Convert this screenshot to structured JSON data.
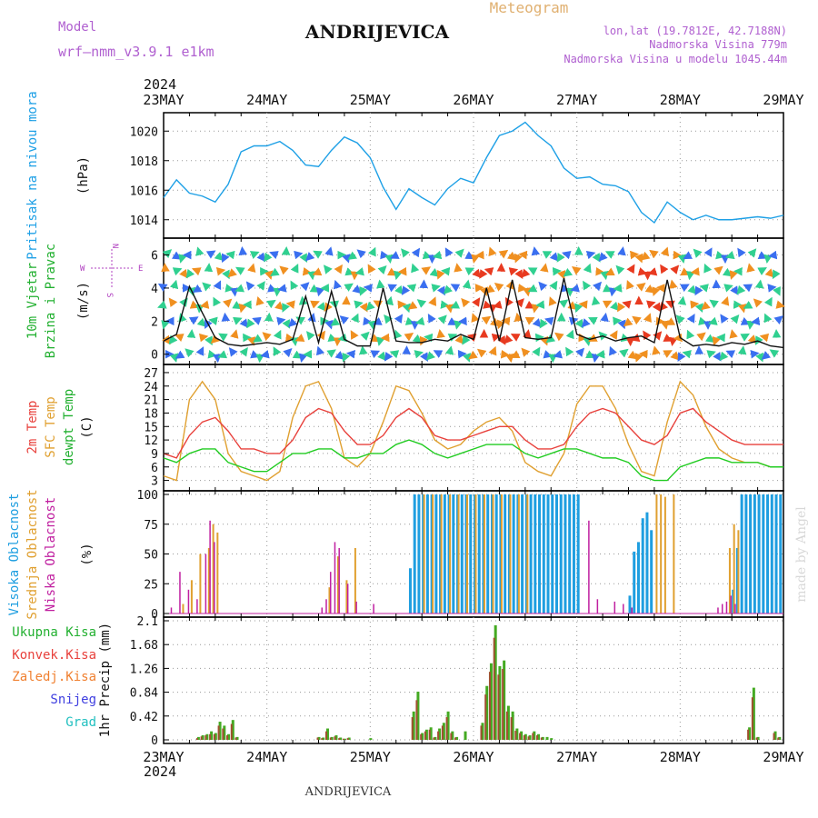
{
  "header": {
    "model_label": "Model",
    "model_name": "wrf–nmm_v3.9.1  e1km",
    "location": "ANDRIJEVICA",
    "product": "Meteogram",
    "coords": "lon,lat (19.7812E, 42.7188N)",
    "elevation": "Nadmorska Visina 779m",
    "model_elevation": "Nadmorska Visina u modelu 1045.44m",
    "year_top": "2024",
    "year_bottom": "2024",
    "footer_location": "ANDRIJEVICA",
    "watermark": "made by Angel"
  },
  "colors": {
    "pressure": "#1ea0e6",
    "temp2m": "#e8413c",
    "sfc": "#e0a030",
    "dewpt": "#22cc22",
    "high_cloud": "#1e9ee0",
    "mid_cloud": "#e0a030",
    "low_cloud": "#c020a0",
    "total_precip": "#44aa22",
    "conv_precip": "#a05030"
  },
  "chart_data": [
    {
      "type": "line",
      "panel": "pressure",
      "ylabel_main": "Pritisak na nivou mora",
      "ylabel_unit": "(hPa)",
      "x_ticks": [
        "23MAY",
        "24MAY",
        "25MAY",
        "26MAY",
        "27MAY",
        "28MAY",
        "29MAY"
      ],
      "ylim": [
        1013,
        1021
      ],
      "y_ticks": [
        "1014",
        "1016",
        "1018",
        "1020"
      ],
      "series": [
        {
          "x_hours": [
            0,
            3,
            6,
            9,
            12,
            15,
            18,
            21,
            24,
            27,
            30,
            33,
            36,
            39,
            42,
            45,
            48,
            51,
            54,
            57,
            60,
            63,
            66,
            69,
            72,
            75,
            78,
            81,
            84,
            87,
            90,
            93,
            96,
            99,
            102,
            105,
            108,
            111,
            114,
            117,
            120,
            123,
            126,
            129,
            132,
            135,
            138,
            141,
            144
          ],
          "values": [
            1015.5,
            1016.7,
            1015.8,
            1015.6,
            1015.2,
            1016.4,
            1018.6,
            1019.0,
            1019.0,
            1019.3,
            1018.7,
            1017.7,
            1017.6,
            1018.7,
            1019.6,
            1019.2,
            1018.2,
            1016.2,
            1014.7,
            1016.1,
            1015.5,
            1015.0,
            1016.1,
            1016.8,
            1016.5,
            1018.2,
            1019.7,
            1020.0,
            1020.6,
            1019.7,
            1019.0,
            1017.5,
            1016.8,
            1016.9,
            1016.4,
            1016.3,
            1015.9,
            1014.5,
            1013.8,
            1015.2,
            1014.5,
            1014.0,
            1014.3,
            1014.0,
            1014.0,
            1014.1,
            1014.2,
            1014.1,
            1014.3
          ]
        }
      ]
    },
    {
      "type": "line",
      "panel": "wind",
      "ylabel_main": "10m Vjetar",
      "ylabel_sub": "Brzina i Pravac",
      "ylabel_unit": "(m/s)",
      "compass": {
        "north": "N",
        "south": "S",
        "west": "W",
        "east": "E"
      },
      "ylim": [
        -0.4,
        6.8
      ],
      "y_ticks": [
        "0",
        "2",
        "4",
        "6"
      ],
      "series": [
        {
          "name": "wind speed",
          "x_hours": [
            0,
            3,
            6,
            9,
            12,
            15,
            18,
            21,
            24,
            27,
            30,
            33,
            36,
            39,
            42,
            45,
            48,
            51,
            54,
            57,
            60,
            63,
            66,
            69,
            72,
            75,
            78,
            81,
            84,
            87,
            90,
            93,
            96,
            99,
            102,
            105,
            108,
            111,
            114,
            117,
            120,
            123,
            126,
            129,
            132,
            135,
            138,
            141,
            144
          ],
          "values": [
            0.8,
            1.2,
            4.1,
            2.5,
            1.0,
            0.6,
            0.5,
            0.6,
            0.7,
            0.6,
            0.9,
            3.5,
            0.7,
            3.8,
            0.9,
            0.5,
            0.5,
            4.0,
            0.8,
            0.7,
            0.7,
            0.9,
            0.8,
            1.2,
            0.9,
            4.0,
            0.8,
            4.5,
            1.0,
            0.9,
            1.0,
            4.6,
            1.2,
            0.9,
            1.1,
            0.8,
            1.0,
            1.1,
            0.7,
            4.5,
            1.0,
            0.5,
            0.6,
            0.5,
            0.7,
            0.6,
            0.8,
            0.5,
            0.4
          ]
        }
      ]
    },
    {
      "type": "line",
      "panel": "temperature",
      "ylabel_t2m": "2m Temp",
      "ylabel_sfc": "SFC Temp",
      "ylabel_dew": "dewpt Temp",
      "ylabel_unit": "(C)",
      "ylim": [
        1.5,
        28
      ],
      "y_ticks": [
        "3",
        "6",
        "9",
        "12",
        "15",
        "18",
        "21",
        "24",
        "27"
      ],
      "series": [
        {
          "name": "2m Temp",
          "x_hours": [
            0,
            3,
            6,
            9,
            12,
            15,
            18,
            21,
            24,
            27,
            30,
            33,
            36,
            39,
            42,
            45,
            48,
            51,
            54,
            57,
            60,
            63,
            66,
            69,
            72,
            75,
            78,
            81,
            84,
            87,
            90,
            93,
            96,
            99,
            102,
            105,
            108,
            111,
            114,
            117,
            120,
            123,
            126,
            129,
            132,
            135,
            138,
            141,
            144
          ],
          "values": [
            9,
            8,
            13,
            16,
            17,
            14,
            10,
            10,
            9,
            9,
            12,
            17,
            19,
            18,
            14,
            11,
            11,
            13,
            17,
            19,
            17,
            13,
            12,
            12,
            13,
            14,
            15,
            15,
            12,
            10,
            10,
            11,
            15,
            18,
            19,
            18,
            15,
            12,
            11,
            13,
            18,
            19,
            16,
            14,
            12,
            11,
            11,
            11,
            11
          ]
        },
        {
          "name": "SFC Temp",
          "x_hours": [
            0,
            3,
            6,
            9,
            12,
            15,
            18,
            21,
            24,
            27,
            30,
            33,
            36,
            39,
            42,
            45,
            48,
            51,
            54,
            57,
            60,
            63,
            66,
            69,
            72,
            75,
            78,
            81,
            84,
            87,
            90,
            93,
            96,
            99,
            102,
            105,
            108,
            111,
            114,
            117,
            120,
            123,
            126,
            129,
            132,
            135,
            138,
            141,
            144
          ],
          "values": [
            4,
            3,
            21,
            25,
            21,
            9,
            5,
            4,
            3,
            5,
            17,
            24,
            25,
            19,
            8,
            6,
            9,
            16,
            24,
            23,
            18,
            12,
            10,
            11,
            14,
            16,
            17,
            14,
            7,
            5,
            4,
            9,
            20,
            24,
            24,
            19,
            11,
            5,
            4,
            16,
            25,
            22,
            15,
            10,
            8,
            7,
            7,
            6,
            6
          ]
        },
        {
          "name": "dewpt Temp",
          "x_hours": [
            0,
            3,
            6,
            9,
            12,
            15,
            18,
            21,
            24,
            27,
            30,
            33,
            36,
            39,
            42,
            45,
            48,
            51,
            54,
            57,
            60,
            63,
            66,
            69,
            72,
            75,
            78,
            81,
            84,
            87,
            90,
            93,
            96,
            99,
            102,
            105,
            108,
            111,
            114,
            117,
            120,
            123,
            126,
            129,
            132,
            135,
            138,
            141,
            144
          ],
          "values": [
            8,
            7,
            9,
            10,
            10,
            7,
            6,
            5,
            5,
            7,
            9,
            9,
            10,
            10,
            8,
            8,
            9,
            9,
            11,
            12,
            11,
            9,
            8,
            9,
            10,
            11,
            11,
            11,
            9,
            8,
            9,
            10,
            10,
            9,
            8,
            8,
            7,
            4,
            3,
            3,
            6,
            7,
            8,
            8,
            7,
            7,
            7,
            6,
            6
          ]
        }
      ]
    },
    {
      "type": "bar",
      "panel": "cloud",
      "ylabel_high": "Visoka Oblacnost",
      "ylabel_mid": "Srednja Oblacnost",
      "ylabel_low": "Niska Oblacnost",
      "ylabel_unit": "(%)",
      "ylim": [
        0,
        100
      ],
      "y_ticks": [
        "0",
        "25",
        "50",
        "75",
        "100"
      ],
      "series": [
        {
          "name": "Visoka Oblacnost",
          "x_hours": [
            57,
            58,
            59,
            60,
            61,
            62,
            63,
            64,
            65,
            66,
            67,
            68,
            69,
            70,
            71,
            72,
            73,
            74,
            75,
            76,
            77,
            78,
            79,
            80,
            81,
            82,
            83,
            84,
            85,
            86,
            87,
            88,
            89,
            90,
            91,
            92,
            93,
            94,
            95,
            96,
            108,
            109,
            110,
            111,
            112,
            113,
            132,
            133,
            134,
            135,
            136,
            137,
            138,
            139,
            140,
            141,
            142,
            143
          ],
          "values": [
            38,
            100,
            100,
            100,
            100,
            100,
            100,
            100,
            100,
            100,
            100,
            100,
            100,
            100,
            100,
            100,
            100,
            100,
            100,
            100,
            100,
            100,
            100,
            100,
            100,
            100,
            100,
            100,
            100,
            100,
            100,
            100,
            100,
            100,
            100,
            100,
            100,
            100,
            100,
            100,
            15,
            52,
            60,
            80,
            85,
            70,
            20,
            55,
            100,
            100,
            100,
            100,
            100,
            100,
            100,
            100,
            100,
            100
          ]
        },
        {
          "name": "Srednja Oblacnost",
          "x_hours": [
            4,
            6,
            8,
            10,
            11,
            12,
            38,
            40,
            42,
            44,
            60,
            62,
            64,
            66,
            68,
            70,
            72,
            74,
            76,
            78,
            80,
            82,
            84,
            114,
            115,
            116,
            118,
            131,
            132,
            133
          ],
          "values": [
            8,
            28,
            50,
            55,
            75,
            68,
            22,
            48,
            28,
            55,
            100,
            100,
            100,
            100,
            100,
            100,
            100,
            100,
            100,
            100,
            100,
            100,
            100,
            100,
            100,
            98,
            100,
            55,
            75,
            70
          ]
        },
        {
          "name": "Niska Oblacnost",
          "x_hours": [
            1,
            3,
            5,
            7,
            9,
            10,
            11,
            36,
            37,
            38,
            39,
            40,
            42,
            44,
            48,
            98,
            100,
            104,
            106,
            108,
            128,
            129,
            130,
            131,
            132
          ],
          "values": [
            5,
            35,
            20,
            12,
            50,
            78,
            60,
            5,
            12,
            35,
            60,
            55,
            25,
            10,
            8,
            78,
            12,
            10,
            8,
            5,
            5,
            8,
            10,
            15,
            8
          ]
        }
      ]
    },
    {
      "type": "bar",
      "panel": "precip",
      "ylabel_unit": "1hr Precip (mm)",
      "legend": [
        "Ukupna Kisa",
        "Konvek.Kisa",
        "Zaledj.Kisa",
        "Snijeg",
        "Grad"
      ],
      "ylim": [
        0,
        2.1
      ],
      "y_ticks": [
        "0",
        "0.42",
        "0.84",
        "1.26",
        "1.68",
        "2.1"
      ],
      "series": [
        {
          "name": "Ukupna Kisa",
          "x_hours": [
            8,
            9,
            10,
            11,
            12,
            13,
            14,
            15,
            16,
            17,
            36,
            37,
            38,
            39,
            40,
            41,
            42,
            43,
            48,
            58,
            59,
            60,
            61,
            62,
            63,
            64,
            65,
            66,
            67,
            68,
            70,
            74,
            75,
            76,
            77,
            78,
            79,
            80,
            81,
            82,
            83,
            84,
            85,
            86,
            87,
            88,
            89,
            90,
            136,
            137,
            138,
            142,
            143
          ],
          "values": [
            0.05,
            0.08,
            0.1,
            0.15,
            0.12,
            0.32,
            0.25,
            0.1,
            0.35,
            0.05,
            0.05,
            0.04,
            0.2,
            0.05,
            0.08,
            0.04,
            0.02,
            0.04,
            0.03,
            0.5,
            0.85,
            0.12,
            0.18,
            0.22,
            0.05,
            0.2,
            0.3,
            0.5,
            0.15,
            0.05,
            0.15,
            0.3,
            0.95,
            1.35,
            2.02,
            1.3,
            1.4,
            0.6,
            0.5,
            0.2,
            0.15,
            0.1,
            0.08,
            0.15,
            0.1,
            0.05,
            0.05,
            0.03,
            0.22,
            0.92,
            0.05,
            0.15,
            0.05
          ]
        },
        {
          "name": "Konvek.Kisa",
          "x_hours": [
            8,
            9,
            10,
            11,
            12,
            13,
            14,
            15,
            16,
            17,
            36,
            37,
            38,
            39,
            40,
            41,
            42,
            43,
            58,
            59,
            60,
            61,
            62,
            63,
            64,
            65,
            66,
            67,
            68,
            74,
            75,
            76,
            77,
            78,
            79,
            80,
            81,
            82,
            83,
            84,
            85,
            86,
            87,
            88,
            136,
            137,
            138,
            142,
            143
          ],
          "values": [
            0.03,
            0.06,
            0.08,
            0.1,
            0.1,
            0.25,
            0.2,
            0.08,
            0.28,
            0.04,
            0.04,
            0.03,
            0.15,
            0.04,
            0.06,
            0.03,
            0.02,
            0.03,
            0.4,
            0.7,
            0.1,
            0.15,
            0.18,
            0.04,
            0.15,
            0.25,
            0.4,
            0.12,
            0.04,
            0.25,
            0.8,
            1.2,
            1.8,
            1.15,
            1.25,
            0.5,
            0.4,
            0.16,
            0.12,
            0.08,
            0.06,
            0.12,
            0.08,
            0.04,
            0.18,
            0.75,
            0.04,
            0.12,
            0.04
          ]
        }
      ]
    }
  ]
}
